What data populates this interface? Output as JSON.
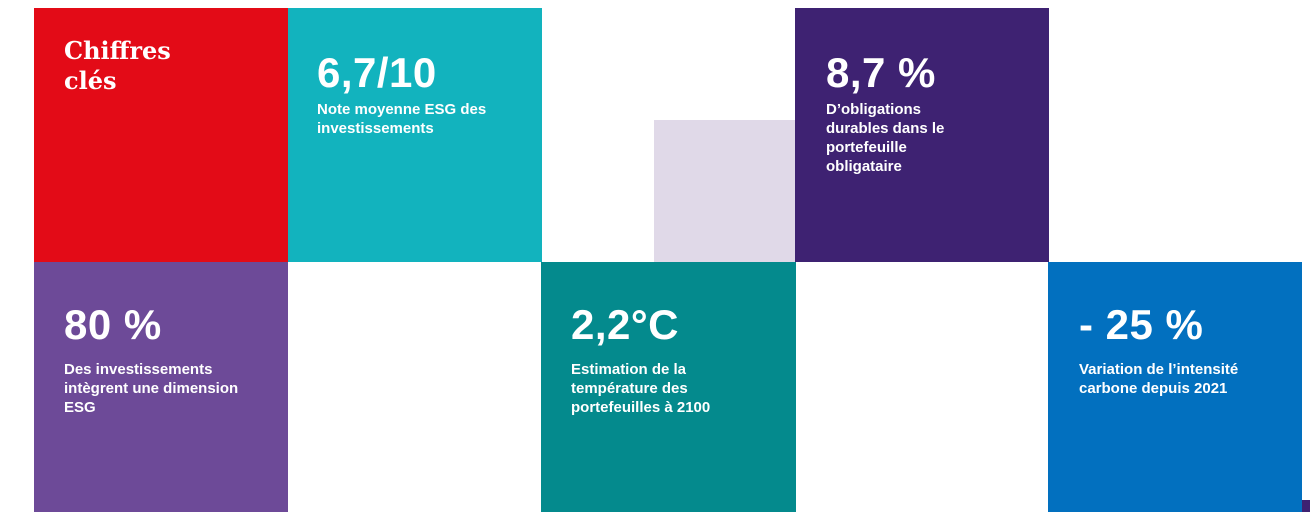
{
  "title": "Chiffres clés",
  "colors": {
    "title_tile": "#E30B17",
    "esg_score_tile": "#12B3BE",
    "decor_tile": "#E0D9E8",
    "sustainable_bonds_tile": "#3E2272",
    "esg_investments_tile": "#6D4A98",
    "temperature_tile": "#048A8D",
    "carbon_intensity_tile": "#0270BF"
  },
  "stats": {
    "esg_score": {
      "value": "6,7/10",
      "desc": "Note moyenne ESG des investissements"
    },
    "sustainable_bonds": {
      "value": "8,7 %",
      "desc": "D’obligations durables dans le portefeuille obligataire"
    },
    "esg_investments": {
      "value": "80 %",
      "desc": "Des investissements intègrent une dimension ESG"
    },
    "temperature": {
      "value": "2,2°C",
      "desc": "Estimation de la température des portefeuilles à 2100"
    },
    "carbon_intensity": {
      "value": "- 25 %",
      "desc": "Variation de l’intensité carbone depuis 2021"
    }
  }
}
